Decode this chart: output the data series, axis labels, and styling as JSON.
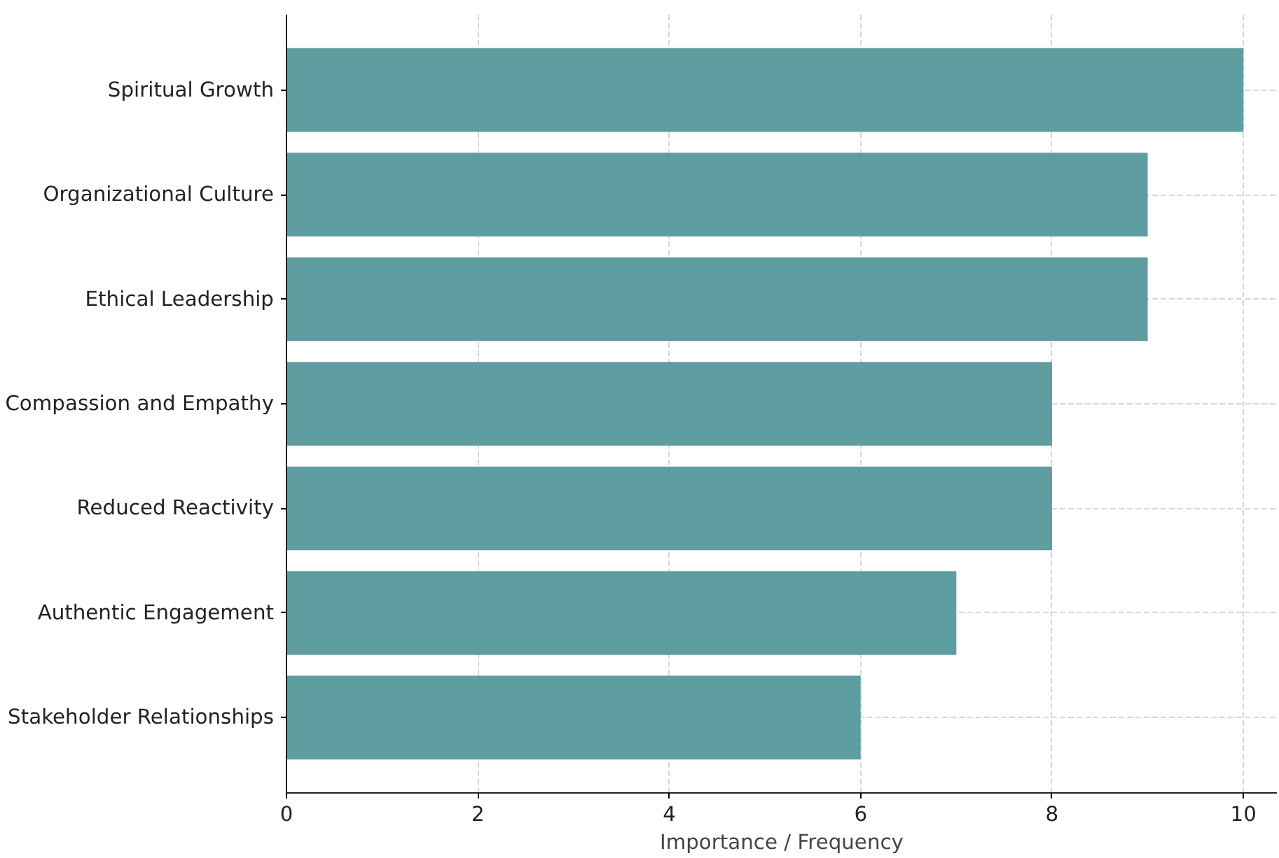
{
  "chart_data": {
    "type": "bar",
    "orientation": "horizontal",
    "xlabel": "Importance / Frequency",
    "categories": [
      "Spiritual Growth",
      "Organizational Culture",
      "Ethical Leadership",
      "Compassion and Empathy",
      "Reduced Reactivity",
      "Authentic Engagement",
      "Stakeholder Relationships"
    ],
    "values": [
      10,
      9,
      9,
      8,
      8,
      7,
      6
    ],
    "color": "#5f9ea0",
    "xlim": [
      0,
      10.35
    ],
    "xticks": [
      0,
      2,
      4,
      6,
      8,
      10
    ],
    "grid": true
  }
}
